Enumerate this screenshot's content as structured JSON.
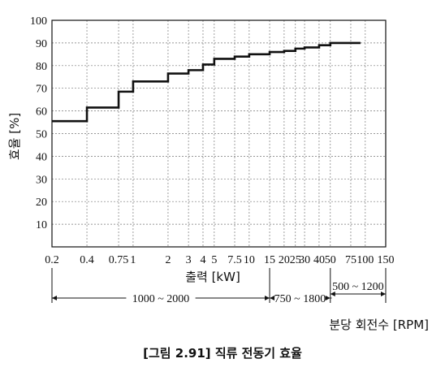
{
  "chart_data": {
    "type": "line",
    "step": true,
    "ylabel": "효율 [%]",
    "xlabel": "출력 [kW]",
    "ylim": [
      0,
      100
    ],
    "y_ticks": [
      10,
      20,
      30,
      40,
      50,
      60,
      70,
      80,
      90,
      100
    ],
    "x_scale": "log",
    "x_ticks": [
      "0.2",
      "0.4",
      "0.75",
      "1",
      "2",
      "3",
      "4",
      "5",
      "7.5",
      "10",
      "15",
      "20",
      "25",
      "30",
      "40",
      "50",
      "75",
      "100",
      "150"
    ],
    "grid": true,
    "series": [
      {
        "x": [
          "0.2",
          "0.4",
          "0.75",
          "1",
          "2",
          "3",
          "4",
          "5",
          "7.5",
          "10",
          "15",
          "20",
          "25",
          "30",
          "40",
          "50",
          "75"
        ],
        "values": [
          55.5,
          61.5,
          68.5,
          73,
          76.5,
          78,
          80.5,
          83,
          84,
          85,
          86,
          86.5,
          87.5,
          88,
          89,
          90,
          90
        ]
      }
    ],
    "rpm_ranges": [
      {
        "label": "1000 ~ 2000",
        "from": "0.2",
        "to": "15"
      },
      {
        "label": "750 ~ 1800",
        "from": "15",
        "to": "50"
      },
      {
        "label": "500 ~ 1200",
        "from": "50",
        "to": "150"
      }
    ],
    "rpm_axis_label": "분당 회전수 [RPM]",
    "caption": "[그림 2.91] 직류 전동기 효율"
  }
}
